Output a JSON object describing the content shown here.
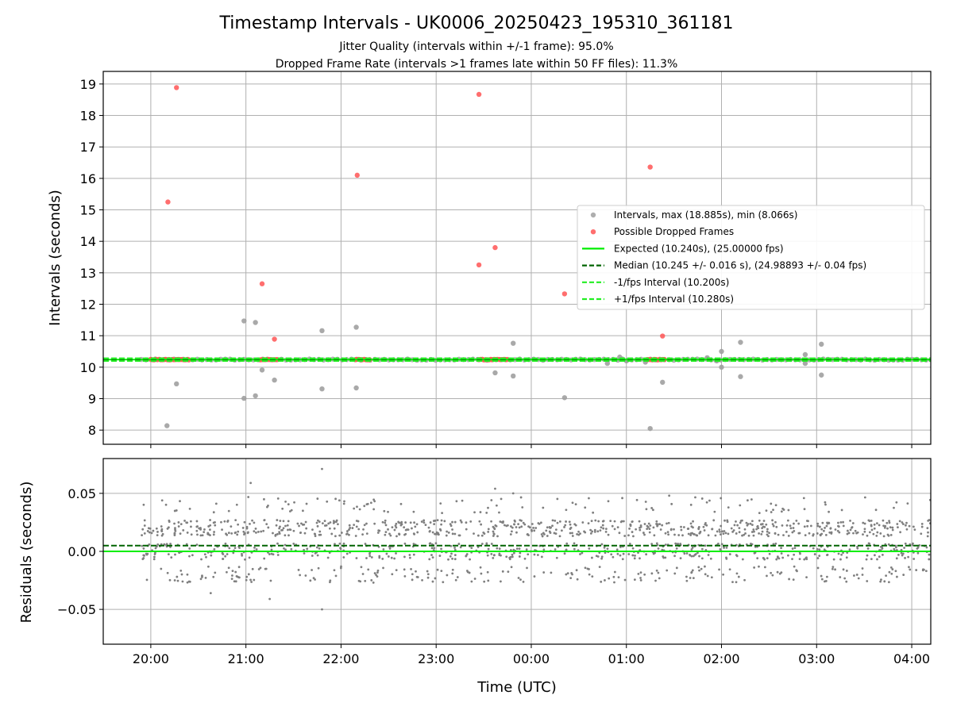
{
  "figure": {
    "title": "Timestamp Intervals - UK0006_20250423_195310_361181",
    "subtitle_line1": "Jitter Quality (intervals within +/-1 frame): 95.0%",
    "subtitle_line2": "Dropped Frame Rate (intervals >1 frames late within 50 FF files): 11.3%"
  },
  "colors": {
    "intervals": "#a0a0a0",
    "dropped": "#ff5555",
    "expected": "#00ee00",
    "median": "#006400",
    "fps_interval": "#22ee22",
    "residuals": "#7f7f7f",
    "grid": "#b0b0b0"
  },
  "chart_data": [
    {
      "type": "scatter",
      "panel": "intervals",
      "xlabel": "",
      "ylabel": "Intervals (seconds)",
      "xlim": [
        19.5,
        28.2
      ],
      "ylim": [
        7.55,
        19.4
      ],
      "xticks": [
        20,
        21,
        22,
        23,
        24,
        25,
        26,
        27,
        28
      ],
      "xtick_labels": [
        "20:00",
        "21:00",
        "22:00",
        "23:00",
        "00:00",
        "01:00",
        "02:00",
        "03:00",
        "04:00"
      ],
      "yticks": [
        8,
        9,
        10,
        11,
        12,
        13,
        14,
        15,
        16,
        17,
        18,
        19
      ],
      "ytick_labels": [
        "8",
        "9",
        "10",
        "11",
        "12",
        "13",
        "14",
        "15",
        "16",
        "17",
        "18",
        "19"
      ],
      "grid": true,
      "legend_position": "center-right",
      "series": [
        {
          "name": "Intervals, max (18.885s), min (8.066s)",
          "kind": "scatter",
          "baseline": {
            "x_range": [
              19.9,
              28.2
            ],
            "y": 10.24,
            "spread": 0.02
          },
          "outliers": [
            {
              "x": 20.17,
              "y": 8.14
            },
            {
              "x": 20.27,
              "y": 9.47
            },
            {
              "x": 20.98,
              "y": 9.01
            },
            {
              "x": 20.98,
              "y": 11.47
            },
            {
              "x": 21.1,
              "y": 11.42
            },
            {
              "x": 21.1,
              "y": 9.09
            },
            {
              "x": 21.17,
              "y": 9.91
            },
            {
              "x": 21.3,
              "y": 9.59
            },
            {
              "x": 21.8,
              "y": 11.16
            },
            {
              "x": 21.8,
              "y": 9.31
            },
            {
              "x": 22.16,
              "y": 11.27
            },
            {
              "x": 22.16,
              "y": 9.34
            },
            {
              "x": 23.62,
              "y": 9.82
            },
            {
              "x": 23.81,
              "y": 10.76
            },
            {
              "x": 23.81,
              "y": 9.72
            },
            {
              "x": 24.35,
              "y": 9.03
            },
            {
              "x": 25.0,
              "y": 10.2
            },
            {
              "x": 25.2,
              "y": 10.16
            },
            {
              "x": 25.25,
              "y": 8.05
            },
            {
              "x": 25.38,
              "y": 9.52
            },
            {
              "x": 25.85,
              "y": 10.3
            },
            {
              "x": 25.95,
              "y": 10.2
            },
            {
              "x": 26.0,
              "y": 10.5
            },
            {
              "x": 26.0,
              "y": 10.0
            },
            {
              "x": 26.2,
              "y": 10.79
            },
            {
              "x": 26.2,
              "y": 9.7
            },
            {
              "x": 26.88,
              "y": 10.4
            },
            {
              "x": 26.88,
              "y": 10.12
            },
            {
              "x": 27.05,
              "y": 10.73
            },
            {
              "x": 27.05,
              "y": 9.75
            },
            {
              "x": 24.8,
              "y": 10.12
            },
            {
              "x": 24.93,
              "y": 10.32
            }
          ]
        },
        {
          "name": "Possible Dropped Frames",
          "kind": "scatter",
          "clusters": [
            [
              20.0,
              20.4
            ],
            [
              21.15,
              21.33
            ],
            [
              22.15,
              22.3
            ],
            [
              23.45,
              23.75
            ],
            [
              25.22,
              25.4
            ]
          ],
          "cluster_y": 10.24,
          "outliers": [
            {
              "x": 20.27,
              "y": 18.885
            },
            {
              "x": 20.18,
              "y": 15.25
            },
            {
              "x": 21.17,
              "y": 12.65
            },
            {
              "x": 21.3,
              "y": 10.89
            },
            {
              "x": 22.17,
              "y": 16.1
            },
            {
              "x": 23.45,
              "y": 18.67
            },
            {
              "x": 23.45,
              "y": 13.25
            },
            {
              "x": 23.62,
              "y": 13.8
            },
            {
              "x": 24.35,
              "y": 12.33
            },
            {
              "x": 25.25,
              "y": 16.36
            },
            {
              "x": 25.38,
              "y": 10.99
            }
          ]
        },
        {
          "name": "Expected (10.240s), (25.00000 fps)",
          "kind": "hline",
          "y": 10.24,
          "style": "solid"
        },
        {
          "name": "Median (10.245 +/- 0.016 s), (24.98893 +/- 0.04 fps)",
          "kind": "hline",
          "y": 10.245,
          "style": "dashed"
        },
        {
          "name": "-1/fps Interval (10.200s)",
          "kind": "hline",
          "y": 10.2,
          "style": "dashed"
        },
        {
          "name": "+1/fps Interval (10.280s)",
          "kind": "hline",
          "y": 10.28,
          "style": "dashed"
        }
      ]
    },
    {
      "type": "scatter",
      "panel": "residuals",
      "xlabel": "Time (UTC)",
      "ylabel": "Residuals (seconds)",
      "xlim": [
        19.5,
        28.2
      ],
      "ylim": [
        -0.08,
        0.08
      ],
      "xticks": [
        20,
        21,
        22,
        23,
        24,
        25,
        26,
        27,
        28
      ],
      "xtick_labels": [
        "20:00",
        "21:00",
        "22:00",
        "23:00",
        "00:00",
        "01:00",
        "02:00",
        "03:00",
        "04:00"
      ],
      "yticks": [
        0.05,
        0.0,
        -0.05
      ],
      "ytick_labels": [
        "0.05",
        "0.00",
        "−0.05"
      ],
      "grid": true,
      "series": [
        {
          "name": "Residuals",
          "kind": "scatter",
          "x_range": [
            19.9,
            28.2
          ],
          "levels": [
            0.02,
            0.0,
            -0.02,
            0.04
          ],
          "notable_points": [
            {
              "x": 21.05,
              "y": 0.059
            },
            {
              "x": 21.8,
              "y": 0.071
            },
            {
              "x": 21.8,
              "y": -0.05
            },
            {
              "x": 21.25,
              "y": -0.041
            },
            {
              "x": 20.63,
              "y": -0.036
            },
            {
              "x": 23.62,
              "y": 0.054
            },
            {
              "x": 23.81,
              "y": 0.05
            },
            {
              "x": 25.45,
              "y": 0.048
            }
          ]
        },
        {
          "name": "Expected",
          "kind": "hline",
          "y": 0.0,
          "style": "solid"
        },
        {
          "name": "Median",
          "kind": "hline",
          "y": 0.005,
          "style": "dashed"
        }
      ]
    }
  ]
}
